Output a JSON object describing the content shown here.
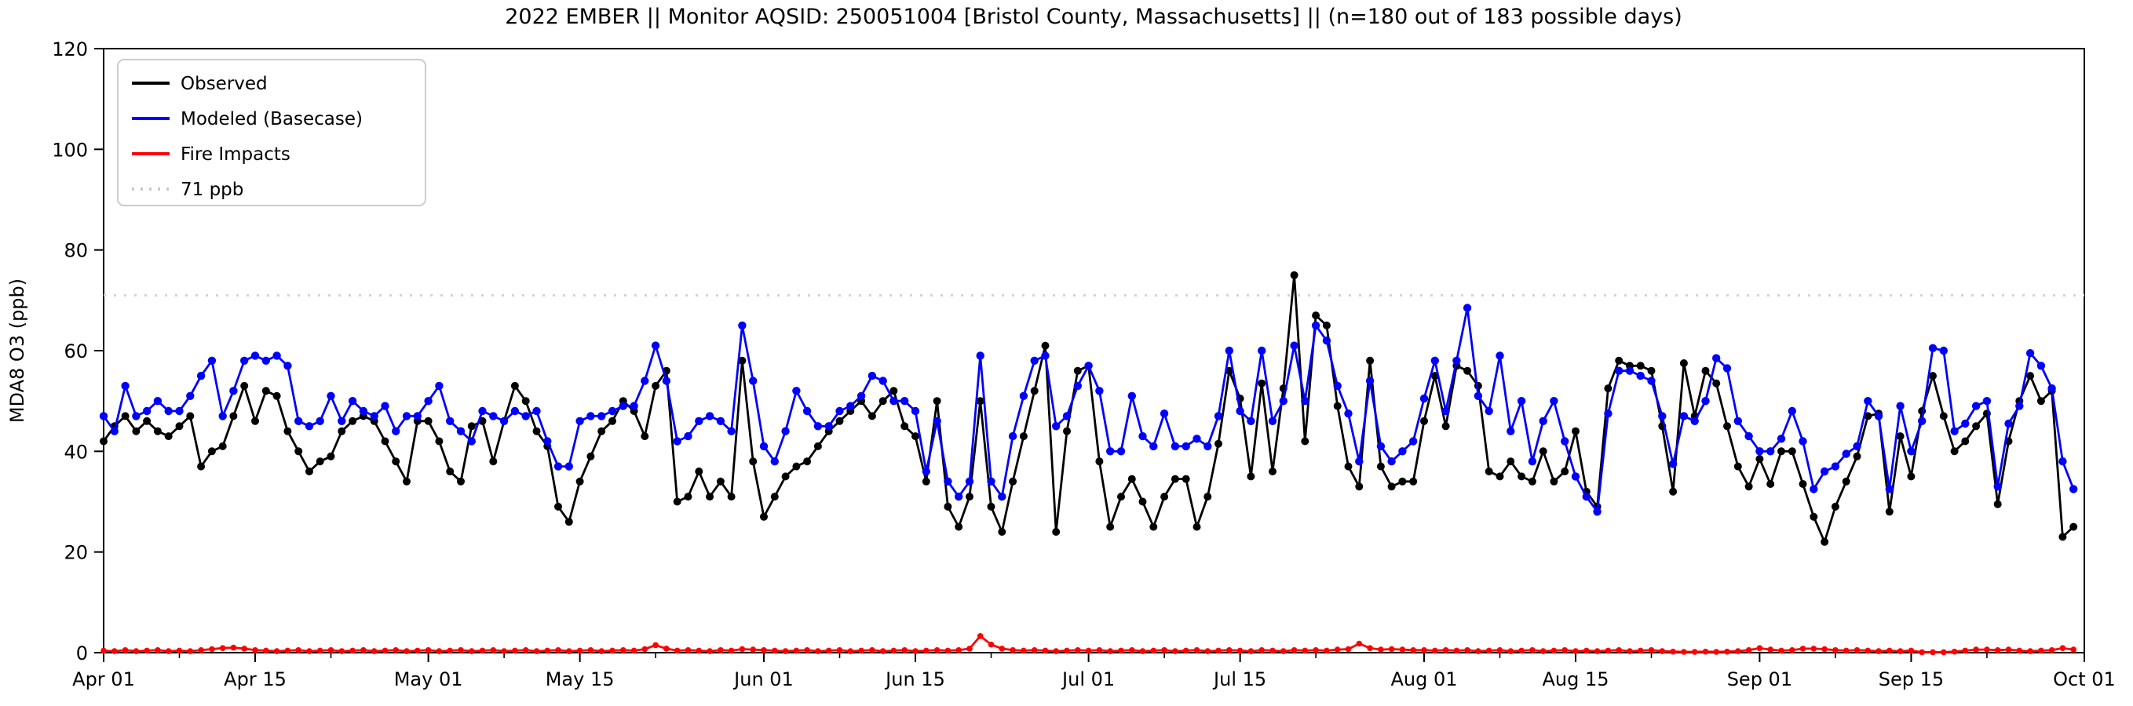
{
  "title": "2022 EMBER || Monitor AQSID: 250051004 [Bristol County, Massachusetts] || (n=180 out of 183 possible days)",
  "axes": {
    "ylabel": "MDA8 O3 (ppb)",
    "ylim": [
      0,
      120
    ],
    "yticks": [
      0,
      20,
      40,
      60,
      80,
      100,
      120
    ],
    "xtick_labels": [
      "Apr 01",
      "Apr 15",
      "May 01",
      "May 15",
      "Jun 01",
      "Jun 15",
      "Jul 01",
      "Jul 15",
      "Aug 01",
      "Aug 15",
      "Sep 01",
      "Sep 15",
      "Oct 01"
    ],
    "xtick_day_index": [
      0,
      14,
      30,
      44,
      61,
      75,
      91,
      105,
      122,
      136,
      153,
      167,
      183
    ],
    "minor_tick_day_index": [
      7,
      21,
      37,
      51,
      68,
      82,
      98,
      112,
      129,
      143,
      160,
      174
    ],
    "grid": false
  },
  "legend": {
    "position": "upper-left",
    "entries": [
      {
        "label": "Observed",
        "color": "#000000",
        "style": "solid"
      },
      {
        "label": "Modeled (Basecase)",
        "color": "#0000ff",
        "style": "solid"
      },
      {
        "label": "Fire Impacts",
        "color": "#ff0000",
        "style": "solid"
      },
      {
        "label": "71 ppb",
        "color": "#c9c9c9",
        "style": "dotted"
      }
    ]
  },
  "threshold": {
    "value": 71,
    "label": "71 ppb",
    "color": "#d4d4d4"
  },
  "chart_data": {
    "type": "line",
    "title": "2022 EMBER || Monitor AQSID: 250051004 [Bristol County, Massachusetts] || (n=180 out of 183 possible days)",
    "xlabel": "",
    "ylabel": "MDA8 O3 (ppb)",
    "x_start": "2022-04-01",
    "x_end": "2022-09-30",
    "frequency": "daily",
    "n_points": 183,
    "series": [
      {
        "name": "Observed",
        "color": "#000000",
        "values": [
          42,
          45,
          47,
          44,
          46,
          44,
          43,
          45,
          47,
          37,
          40,
          41,
          47,
          53,
          46,
          52,
          51,
          44,
          40,
          36,
          38,
          39,
          44,
          46,
          47,
          46,
          42,
          38,
          34,
          46,
          46,
          42,
          36,
          34,
          45,
          46,
          38,
          46,
          53,
          50,
          44,
          41,
          29,
          26,
          34,
          39,
          44,
          46,
          50,
          48,
          43,
          53,
          56,
          30,
          31,
          36,
          31,
          34,
          31,
          58,
          38,
          27,
          31,
          35,
          37,
          38,
          41,
          44,
          46,
          48,
          50,
          47,
          50,
          52,
          45,
          43,
          34,
          50,
          29,
          25,
          31,
          50,
          29,
          24,
          34,
          43,
          52,
          61,
          24,
          44,
          56,
          57,
          38,
          25,
          31,
          34.5,
          30,
          25,
          31,
          34.5,
          34.5,
          25,
          31,
          41.5,
          56,
          50.5,
          35,
          53.5,
          36,
          52.5,
          75,
          42,
          67,
          65,
          49,
          37,
          33,
          58,
          37,
          33,
          34,
          34,
          46,
          55,
          45,
          57,
          56,
          53,
          36,
          35,
          38,
          35,
          34,
          40,
          34,
          36,
          44,
          32,
          29,
          52.5,
          58,
          57,
          57,
          56,
          45,
          32,
          57.5,
          47,
          56,
          53.5,
          45,
          37,
          33,
          38.5,
          33.5,
          40,
          40,
          33.5,
          27,
          22,
          29,
          34,
          39,
          47,
          47.5,
          28,
          43,
          35,
          48,
          55,
          47,
          40,
          42,
          45,
          47.5,
          29.5,
          42,
          50,
          55,
          50,
          52,
          23,
          25
        ]
      },
      {
        "name": "Modeled (Basecase)",
        "color": "#0000ff",
        "values": [
          47,
          44,
          53,
          47,
          48,
          50,
          48,
          48,
          51,
          55,
          58,
          47,
          52,
          58,
          59,
          58,
          59,
          57,
          46,
          45,
          46,
          51,
          46,
          50,
          48,
          47,
          49,
          44,
          47,
          47,
          50,
          53,
          46,
          44,
          42,
          48,
          47,
          46,
          48,
          47,
          48,
          42,
          37,
          37,
          46,
          47,
          47,
          48,
          49,
          49,
          54,
          61,
          54,
          42,
          43,
          46,
          47,
          46,
          44,
          65,
          54,
          41,
          38,
          44,
          52,
          48,
          45,
          45,
          48,
          49,
          51,
          55,
          54,
          50,
          50,
          48,
          36,
          46,
          34,
          31,
          34,
          59,
          34,
          31,
          43,
          51,
          58,
          59,
          45,
          47,
          53,
          57,
          52,
          40,
          40,
          51,
          43,
          41,
          47.5,
          41,
          41,
          42.5,
          41,
          47,
          60,
          48,
          46,
          60,
          46,
          50,
          61,
          50,
          65,
          62,
          53,
          47.5,
          38,
          54,
          41,
          38,
          40,
          42,
          50.5,
          58,
          48,
          58,
          68.5,
          51,
          48,
          59,
          44,
          50,
          38,
          46,
          50,
          42,
          35,
          31,
          28,
          47.5,
          56,
          56,
          55,
          54,
          47,
          37.5,
          47,
          46,
          50,
          58.5,
          56.5,
          46,
          43,
          40,
          40,
          42.5,
          48,
          42,
          32.5,
          36,
          37,
          39.5,
          41,
          50,
          47,
          32.5,
          49,
          40,
          46,
          60.5,
          60,
          44,
          45.5,
          49,
          50,
          33,
          45.5,
          49,
          59.5,
          57,
          52.5,
          38,
          32.5
        ]
      },
      {
        "name": "Fire Impacts",
        "color": "#ff0000",
        "values": [
          0.4,
          0.3,
          0.5,
          0.3,
          0.4,
          0.5,
          0.3,
          0.4,
          0.3,
          0.5,
          0.7,
          0.9,
          1.0,
          0.8,
          0.5,
          0.4,
          0.3,
          0.4,
          0.5,
          0.3,
          0.4,
          0.5,
          0.3,
          0.4,
          0.5,
          0.3,
          0.4,
          0.5,
          0.3,
          0.4,
          0.5,
          0.3,
          0.4,
          0.5,
          0.3,
          0.4,
          0.5,
          0.3,
          0.4,
          0.5,
          0.3,
          0.4,
          0.5,
          0.3,
          0.4,
          0.5,
          0.3,
          0.4,
          0.5,
          0.4,
          0.7,
          1.5,
          0.8,
          0.4,
          0.5,
          0.4,
          0.3,
          0.5,
          0.4,
          0.7,
          0.6,
          0.5,
          0.4,
          0.3,
          0.4,
          0.5,
          0.3,
          0.4,
          0.5,
          0.3,
          0.4,
          0.5,
          0.3,
          0.4,
          0.5,
          0.3,
          0.4,
          0.5,
          0.4,
          0.5,
          0.8,
          3.3,
          1.6,
          0.8,
          0.5,
          0.4,
          0.5,
          0.4,
          0.3,
          0.4,
          0.5,
          0.4,
          0.5,
          0.3,
          0.4,
          0.5,
          0.3,
          0.4,
          0.5,
          0.3,
          0.4,
          0.5,
          0.3,
          0.4,
          0.5,
          0.4,
          0.3,
          0.5,
          0.4,
          0.3,
          0.5,
          0.4,
          0.5,
          0.4,
          0.6,
          0.7,
          1.8,
          0.9,
          0.6,
          0.7,
          0.6,
          0.5,
          0.5,
          0.4,
          0.5,
          0.4,
          0.5,
          0.3,
          0.4,
          0.5,
          0.3,
          0.4,
          0.5,
          0.3,
          0.4,
          0.5,
          0.3,
          0.4,
          0.3,
          0.4,
          0.5,
          0.3,
          0.4,
          0.5,
          0.3,
          0.2,
          0.15,
          0.15,
          0.2,
          0.15,
          0.2,
          0.3,
          0.5,
          0.9,
          0.6,
          0.4,
          0.5,
          0.8,
          0.8,
          0.7,
          0.5,
          0.4,
          0.5,
          0.4,
          0.3,
          0.4,
          0.3,
          0.4,
          0.1,
          0.1,
          0.1,
          0.2,
          0.4,
          0.6,
          0.6,
          0.5,
          0.6,
          0.4,
          0.3,
          0.4,
          0.5,
          0.9,
          0.6
        ]
      }
    ],
    "threshold_line": {
      "value": 71,
      "label": "71 ppb"
    },
    "legend_entries": [
      "Observed",
      "Modeled (Basecase)",
      "Fire Impacts",
      "71 ppb"
    ]
  }
}
